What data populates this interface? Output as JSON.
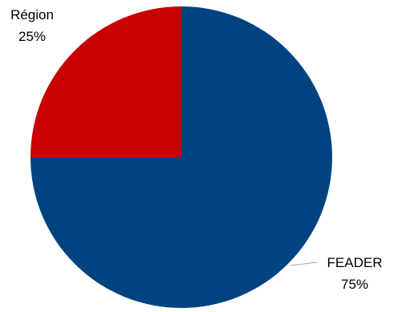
{
  "chart_data": {
    "type": "pie",
    "title": "",
    "legend": "none",
    "start_angle_deg": 0,
    "direction": "clockwise",
    "slices": [
      {
        "name": "FEADER",
        "value": 75,
        "label": "75%",
        "color": "#004380"
      },
      {
        "name": "Région",
        "value": 25,
        "label": "25%",
        "color": "#C80000"
      }
    ]
  }
}
